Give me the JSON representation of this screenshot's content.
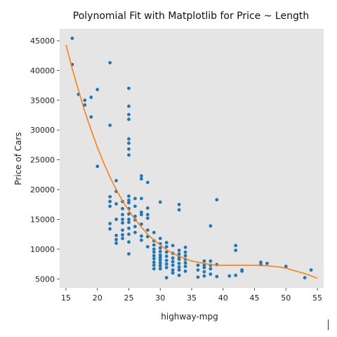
{
  "chart_data": {
    "type": "scatter",
    "title": "Polynomial Fit with Matplotlib for Price ~ Length",
    "xlabel": "highway-mpg",
    "ylabel": "Price of Cars",
    "xlim": [
      14,
      56
    ],
    "ylim": [
      3500,
      47000
    ],
    "x_ticks": [
      15,
      20,
      25,
      30,
      35,
      40,
      45,
      50,
      55
    ],
    "y_ticks": [
      5000,
      10000,
      15000,
      20000,
      25000,
      30000,
      35000,
      40000,
      45000
    ],
    "grid": false,
    "colors": {
      "background": "#e5e5e5",
      "points": "#1f77b4",
      "fit_line": "#ff7f0e"
    },
    "series": [
      {
        "type": "scatter",
        "points": [
          [
            16,
            45400
          ],
          [
            16,
            41000
          ],
          [
            17,
            36000
          ],
          [
            18,
            35000
          ],
          [
            18,
            34200
          ],
          [
            19,
            35500
          ],
          [
            19,
            32200
          ],
          [
            20,
            36800
          ],
          [
            20,
            23900
          ],
          [
            22,
            41300
          ],
          [
            22,
            30800
          ],
          [
            22,
            18800
          ],
          [
            22,
            18000
          ],
          [
            22,
            17200
          ],
          [
            22,
            14300
          ],
          [
            22,
            13400
          ],
          [
            23,
            21500
          ],
          [
            23,
            19700
          ],
          [
            23,
            17600
          ],
          [
            23,
            15000
          ],
          [
            23,
            12300
          ],
          [
            23,
            11600
          ],
          [
            23,
            11000
          ],
          [
            24,
            18000
          ],
          [
            24,
            16800
          ],
          [
            24,
            15800
          ],
          [
            24,
            15000
          ],
          [
            24,
            14400
          ],
          [
            24,
            13200
          ],
          [
            24,
            12400
          ],
          [
            24,
            11800
          ],
          [
            25,
            37000
          ],
          [
            25,
            34000
          ],
          [
            25,
            32600
          ],
          [
            25,
            31800
          ],
          [
            25,
            28500
          ],
          [
            25,
            27800
          ],
          [
            25,
            26800
          ],
          [
            25,
            25800
          ],
          [
            25,
            18900
          ],
          [
            25,
            18200
          ],
          [
            25,
            17800
          ],
          [
            25,
            16800
          ],
          [
            25,
            15900
          ],
          [
            25,
            15000
          ],
          [
            25,
            14500
          ],
          [
            25,
            13500
          ],
          [
            25,
            12500
          ],
          [
            25,
            11200
          ],
          [
            25,
            9200
          ],
          [
            26,
            18500
          ],
          [
            26,
            17200
          ],
          [
            26,
            15500
          ],
          [
            26,
            14900
          ],
          [
            26,
            13800
          ],
          [
            26,
            12800
          ],
          [
            27,
            22300
          ],
          [
            27,
            21800
          ],
          [
            27,
            18500
          ],
          [
            27,
            16200
          ],
          [
            27,
            15800
          ],
          [
            27,
            14200
          ],
          [
            27,
            12200
          ],
          [
            27,
            11500
          ],
          [
            28,
            21200
          ],
          [
            28,
            16900
          ],
          [
            28,
            15800
          ],
          [
            28,
            15200
          ],
          [
            28,
            13200
          ],
          [
            28,
            12100
          ],
          [
            28,
            10400
          ],
          [
            29,
            12800
          ],
          [
            29,
            11400
          ],
          [
            29,
            10700
          ],
          [
            29,
            10000
          ],
          [
            29,
            9500
          ],
          [
            29,
            8900
          ],
          [
            29,
            8400
          ],
          [
            29,
            7800
          ],
          [
            29,
            7300
          ],
          [
            29,
            6700
          ],
          [
            30,
            17900
          ],
          [
            30,
            11800
          ],
          [
            30,
            10900
          ],
          [
            30,
            10200
          ],
          [
            30,
            9600
          ],
          [
            30,
            9000
          ],
          [
            30,
            8600
          ],
          [
            30,
            8200
          ],
          [
            30,
            7700
          ],
          [
            30,
            7200
          ],
          [
            30,
            6700
          ],
          [
            31,
            11100
          ],
          [
            31,
            10400
          ],
          [
            31,
            9500
          ],
          [
            31,
            8800
          ],
          [
            31,
            8100
          ],
          [
            31,
            7500
          ],
          [
            31,
            6900
          ],
          [
            31,
            5200
          ],
          [
            32,
            10600
          ],
          [
            32,
            9300
          ],
          [
            32,
            8500
          ],
          [
            32,
            7900
          ],
          [
            32,
            7300
          ],
          [
            32,
            6500
          ],
          [
            32,
            6000
          ],
          [
            33,
            17500
          ],
          [
            33,
            16600
          ],
          [
            33,
            9800
          ],
          [
            33,
            9200
          ],
          [
            33,
            8700
          ],
          [
            33,
            8300
          ],
          [
            33,
            7600
          ],
          [
            33,
            7000
          ],
          [
            33,
            6500
          ],
          [
            33,
            5600
          ],
          [
            34,
            10300
          ],
          [
            34,
            9500
          ],
          [
            34,
            8900
          ],
          [
            34,
            8300
          ],
          [
            34,
            7700
          ],
          [
            34,
            7100
          ],
          [
            34,
            6300
          ],
          [
            36,
            7300
          ],
          [
            36,
            6500
          ],
          [
            36,
            5300
          ],
          [
            37,
            8000
          ],
          [
            37,
            7300
          ],
          [
            37,
            6900
          ],
          [
            37,
            6200
          ],
          [
            37,
            5500
          ],
          [
            38,
            13900
          ],
          [
            38,
            8000
          ],
          [
            38,
            7300
          ],
          [
            38,
            6700
          ],
          [
            38,
            5800
          ],
          [
            39,
            18300
          ],
          [
            39,
            7400
          ],
          [
            39,
            5400
          ],
          [
            41,
            5500
          ],
          [
            42,
            10600
          ],
          [
            42,
            9800
          ],
          [
            42,
            5600
          ],
          [
            43,
            6500
          ],
          [
            43,
            6300
          ],
          [
            46,
            7800
          ],
          [
            46,
            7400
          ],
          [
            47,
            7600
          ],
          [
            50,
            7100
          ],
          [
            53,
            5200
          ],
          [
            54,
            6500
          ]
        ]
      },
      {
        "type": "line",
        "fit_points": [
          [
            15,
            44300
          ],
          [
            16,
            40300
          ],
          [
            17,
            36600
          ],
          [
            18,
            33100
          ],
          [
            19,
            30000
          ],
          [
            20,
            27100
          ],
          [
            21,
            24500
          ],
          [
            22,
            22100
          ],
          [
            23,
            20000
          ],
          [
            24,
            18100
          ],
          [
            25,
            16500
          ],
          [
            26,
            15000
          ],
          [
            27,
            13700
          ],
          [
            28,
            12500
          ],
          [
            29,
            11500
          ],
          [
            30,
            10700
          ],
          [
            31,
            9900
          ],
          [
            32,
            9300
          ],
          [
            33,
            8800
          ],
          [
            34,
            8400
          ],
          [
            35,
            8000
          ],
          [
            36,
            7800
          ],
          [
            37,
            7600
          ],
          [
            38,
            7400
          ],
          [
            39,
            7300
          ],
          [
            40,
            7300
          ],
          [
            41,
            7300
          ],
          [
            42,
            7300
          ],
          [
            43,
            7300
          ],
          [
            44,
            7300
          ],
          [
            45,
            7300
          ],
          [
            46,
            7300
          ],
          [
            47,
            7200
          ],
          [
            48,
            7100
          ],
          [
            49,
            7000
          ],
          [
            50,
            6800
          ],
          [
            51,
            6500
          ],
          [
            52,
            6200
          ],
          [
            53,
            5900
          ],
          [
            54,
            5500
          ],
          [
            55,
            5100
          ]
        ]
      }
    ]
  }
}
